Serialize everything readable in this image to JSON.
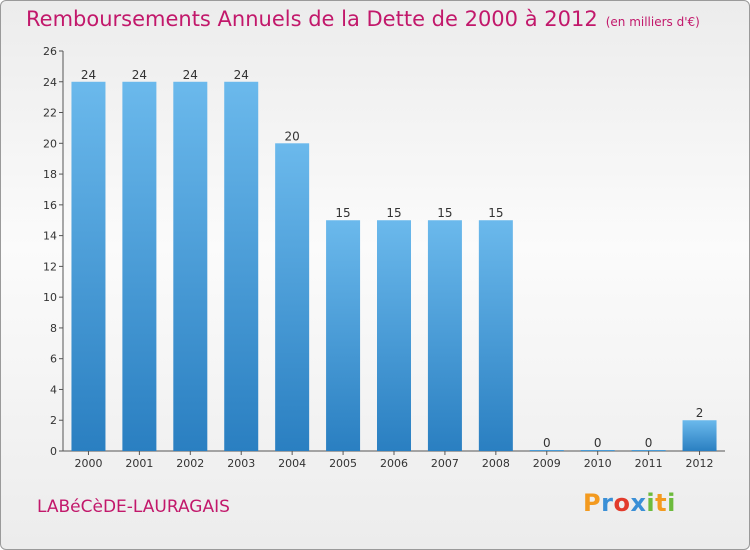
{
  "title": "Remboursements Annuels de la Dette de 2000 à 2012",
  "unit": "(en milliers d'€)",
  "city": "LABéCèDE-LAURAGAIS",
  "logo": {
    "text": "Proxiti",
    "colors": [
      "#f39a1f",
      "#3a8fd6",
      "#e23b2c",
      "#3a8fd6",
      "#6dbb3c",
      "#f39a1f",
      "#6dbb3c"
    ]
  },
  "colors": {
    "accent": "#c2186b",
    "bar_light": "#6bb9ec",
    "bar_dark": "#2a7fc1"
  },
  "chart_data": {
    "type": "bar",
    "title": "Remboursements Annuels de la Dette de 2000 à 2012",
    "xlabel": "",
    "ylabel": "",
    "categories": [
      "2000",
      "2001",
      "2002",
      "2003",
      "2004",
      "2005",
      "2006",
      "2007",
      "2008",
      "2009",
      "2010",
      "2011",
      "2012"
    ],
    "values": [
      24,
      24,
      24,
      24,
      20,
      15,
      15,
      15,
      15,
      0,
      0,
      0,
      2
    ],
    "ylim": [
      0,
      26
    ],
    "yticks": [
      0,
      2,
      4,
      6,
      8,
      10,
      12,
      14,
      16,
      18,
      20,
      22,
      24,
      26
    ],
    "grid": false,
    "legend": "none"
  }
}
